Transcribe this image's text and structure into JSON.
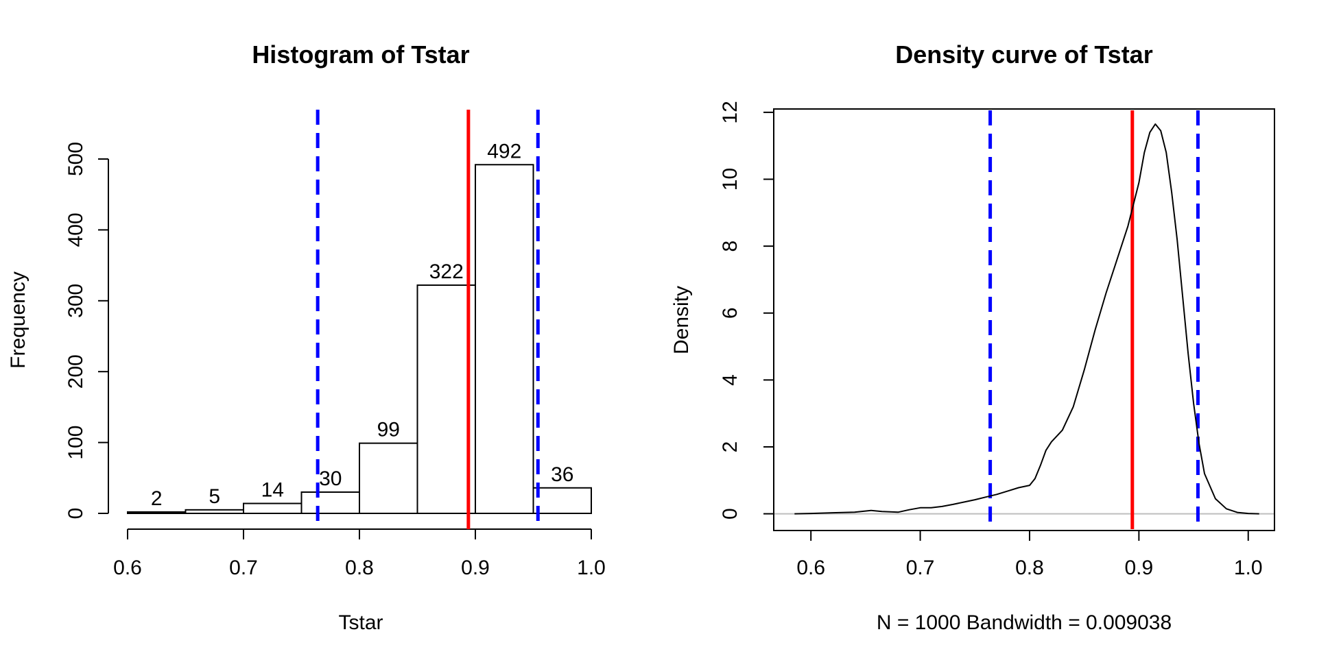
{
  "chart_data": [
    {
      "type": "histogram",
      "title": "Histogram of Tstar",
      "xlabel": "Tstar",
      "ylabel": "Frequency",
      "xlim": [
        0.6,
        1.0
      ],
      "ylim": [
        0,
        500
      ],
      "xticks": [
        "0.6",
        "0.7",
        "0.8",
        "0.9",
        "1.0"
      ],
      "yticks": [
        "0",
        "100",
        "200",
        "300",
        "400",
        "500"
      ],
      "bins": [
        {
          "from": 0.6,
          "to": 0.65,
          "count": 2,
          "label": "2"
        },
        {
          "from": 0.65,
          "to": 0.7,
          "count": 5,
          "label": "5"
        },
        {
          "from": 0.7,
          "to": 0.75,
          "count": 14,
          "label": "14"
        },
        {
          "from": 0.75,
          "to": 0.8,
          "count": 30,
          "label": "30"
        },
        {
          "from": 0.8,
          "to": 0.85,
          "count": 99,
          "label": "99"
        },
        {
          "from": 0.85,
          "to": 0.9,
          "count": 322,
          "label": "322"
        },
        {
          "from": 0.9,
          "to": 0.95,
          "count": 492,
          "label": "492"
        },
        {
          "from": 0.95,
          "to": 1.0,
          "count": 36,
          "label": "36"
        }
      ],
      "vlines": [
        {
          "x": 0.764,
          "color": "#0000ff",
          "style": "dashed"
        },
        {
          "x": 0.954,
          "color": "#0000ff",
          "style": "dashed"
        },
        {
          "x": 0.894,
          "color": "#ff0000",
          "style": "solid"
        }
      ]
    },
    {
      "type": "line",
      "title": "Density curve of Tstar",
      "xlabel": "N = 1000   Bandwidth = 0.009038",
      "ylabel": "Density",
      "xlim": [
        0.566,
        1.024
      ],
      "ylim": [
        -0.5,
        12.1
      ],
      "xticks": [
        "0.6",
        "0.7",
        "0.8",
        "0.9",
        "1.0"
      ],
      "yticks": [
        "0",
        "2",
        "4",
        "6",
        "8",
        "10",
        "12"
      ],
      "x": [
        0.585,
        0.6,
        0.62,
        0.64,
        0.655,
        0.665,
        0.68,
        0.69,
        0.7,
        0.71,
        0.72,
        0.73,
        0.74,
        0.75,
        0.76,
        0.77,
        0.78,
        0.79,
        0.8,
        0.805,
        0.81,
        0.815,
        0.82,
        0.83,
        0.84,
        0.85,
        0.86,
        0.87,
        0.88,
        0.89,
        0.9,
        0.905,
        0.91,
        0.915,
        0.92,
        0.925,
        0.93,
        0.935,
        0.94,
        0.945,
        0.95,
        0.955,
        0.96,
        0.97,
        0.98,
        0.99,
        1.0,
        1.01
      ],
      "y": [
        0.0,
        0.01,
        0.03,
        0.05,
        0.1,
        0.07,
        0.05,
        0.12,
        0.18,
        0.18,
        0.22,
        0.28,
        0.35,
        0.42,
        0.5,
        0.58,
        0.68,
        0.78,
        0.85,
        1.05,
        1.45,
        1.9,
        2.15,
        2.5,
        3.2,
        4.3,
        5.5,
        6.6,
        7.6,
        8.6,
        9.9,
        10.8,
        11.4,
        11.65,
        11.45,
        10.8,
        9.6,
        8.2,
        6.5,
        4.8,
        3.3,
        2.1,
        1.2,
        0.45,
        0.15,
        0.04,
        0.01,
        0.0
      ],
      "vlines": [
        {
          "x": 0.764,
          "color": "#0000ff",
          "style": "dashed"
        },
        {
          "x": 0.954,
          "color": "#0000ff",
          "style": "dashed"
        },
        {
          "x": 0.894,
          "color": "#ff0000",
          "style": "solid"
        }
      ]
    }
  ]
}
